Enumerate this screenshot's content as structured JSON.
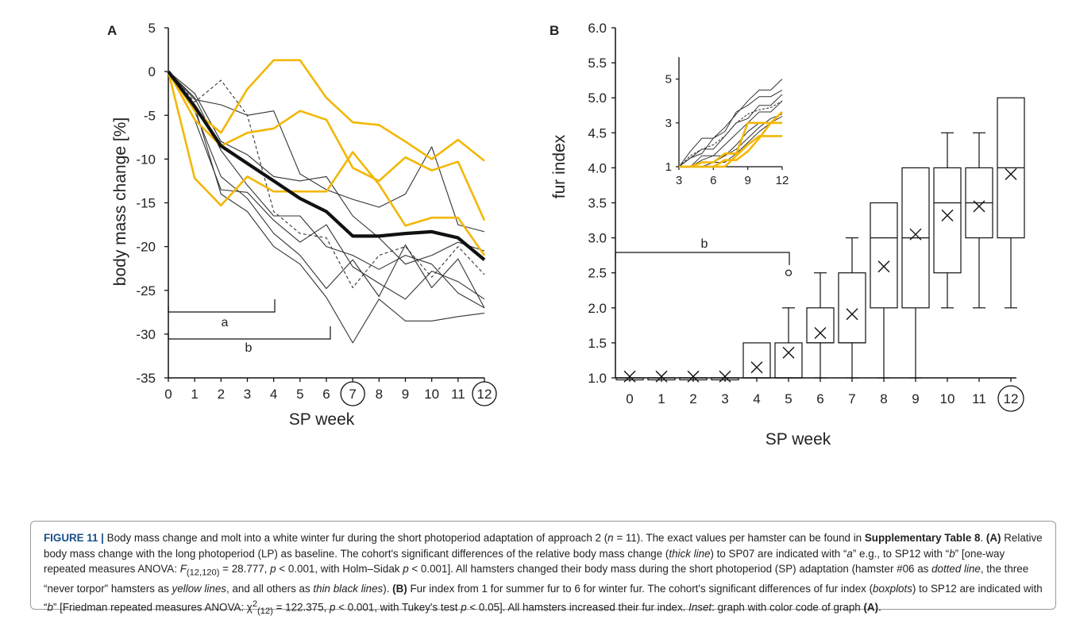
{
  "panel_a": {
    "label": "A",
    "ylabel": "body mass change [%]",
    "xlabel": "SP week",
    "y_ticks": [
      "5",
      "0",
      "-5",
      "-10",
      "-15",
      "-20",
      "-25",
      "-30",
      "-35"
    ],
    "x_ticks": [
      "0",
      "1",
      "2",
      "3",
      "4",
      "5",
      "6",
      "7",
      "8",
      "9",
      "10",
      "11",
      "12"
    ],
    "circled_ticks": [
      "7",
      "12"
    ],
    "bracket_a": "a",
    "bracket_b": "b"
  },
  "panel_b": {
    "label": "B",
    "ylabel": "fur index",
    "xlabel": "SP week",
    "y_ticks": [
      "6.0",
      "5.5",
      "5.0",
      "4.5",
      "4.0",
      "3.5",
      "3.0",
      "2.5",
      "2.0",
      "1.5",
      "1.0"
    ],
    "x_ticks": [
      "0",
      "1",
      "2",
      "3",
      "4",
      "5",
      "6",
      "7",
      "8",
      "9",
      "10",
      "11",
      "12"
    ],
    "circled_ticks": [
      "12"
    ],
    "bracket_b": "b",
    "inset_y_ticks": [
      "5",
      "3",
      "1"
    ],
    "inset_x_ticks": [
      "3",
      "6",
      "9",
      "12"
    ]
  },
  "colors": {
    "yellow": "#f2b705",
    "black": "#111111",
    "thin": "#333333",
    "caption_label": "#1a4f8a"
  },
  "chart_data": [
    {
      "type": "line",
      "panel": "A",
      "xlabel": "SP week",
      "ylabel": "body mass change [%]",
      "xlim": [
        0,
        12
      ],
      "ylim": [
        -35,
        5
      ],
      "x": [
        0,
        1,
        2,
        3,
        4,
        5,
        6,
        7,
        8,
        9,
        10,
        11,
        12
      ],
      "series": [
        {
          "style": "thick-black",
          "values": [
            0,
            -4,
            -8.5,
            -10.5,
            -12.5,
            -14.5,
            -16,
            -18.8,
            -18.8,
            -18.5,
            -18.3,
            -19,
            -21.5
          ]
        },
        {
          "style": "yellow",
          "values": [
            0,
            -4.5,
            -7,
            -2,
            1.3,
            1.3,
            -3,
            -5.8,
            -6.1,
            -8,
            -10,
            -7.8,
            -10.2
          ]
        },
        {
          "style": "yellow",
          "values": [
            0,
            -5.5,
            -8.5,
            -7,
            -6.5,
            -4.5,
            -5.5,
            -11,
            -12.5,
            -9.8,
            -11.3,
            -10.3,
            -17
          ]
        },
        {
          "style": "yellow",
          "values": [
            0,
            -12.2,
            -15.3,
            -12,
            -13.7,
            -13.7,
            -13.7,
            -9.2,
            -12.9,
            -17.6,
            -16.7,
            -16.7,
            -21
          ]
        },
        {
          "style": "dotted",
          "values": [
            0,
            -3.5,
            -1,
            -5,
            -16,
            -18.5,
            -19,
            -24.7,
            -21,
            -20,
            -23.5,
            -20,
            -23.2
          ]
        },
        {
          "style": "thin",
          "values": [
            0,
            -3.2,
            -3.8,
            -5,
            -4.5,
            -11.7,
            -13.5,
            -14.6,
            -15.5,
            -14,
            -8.6,
            -17.5,
            -18.3
          ]
        },
        {
          "style": "thin",
          "values": [
            0,
            -2.5,
            -8,
            -9.5,
            -12,
            -12.5,
            -12,
            -16.5,
            -19,
            -22,
            -21,
            -19.5,
            -20.5
          ]
        },
        {
          "style": "thin",
          "values": [
            0,
            -3,
            -9,
            -13,
            -16.5,
            -16.5,
            -20,
            -21,
            -22.6,
            -21,
            -22,
            -25.3,
            -27
          ]
        },
        {
          "style": "thin",
          "values": [
            0,
            -4.5,
            -12,
            -14.5,
            -18.5,
            -21,
            -24.8,
            -21.5,
            -25.7,
            -19.8,
            -24.7,
            -21.4,
            -27
          ]
        },
        {
          "style": "thin",
          "values": [
            0,
            -5.5,
            -13.5,
            -13.8,
            -17,
            -19.5,
            -17.5,
            -22.3,
            -24.2,
            -26,
            -22.8,
            -24,
            -26
          ]
        },
        {
          "style": "thin",
          "values": [
            0,
            -4,
            -14,
            -16,
            -20,
            -22,
            -25.8,
            -31,
            -26,
            -28.5,
            -28.5,
            -28,
            -27.6
          ]
        }
      ]
    },
    {
      "type": "box",
      "panel": "B",
      "xlabel": "SP week",
      "ylabel": "fur index",
      "ylim": [
        1.0,
        6.0
      ],
      "categories": [
        "0",
        "1",
        "2",
        "3",
        "4",
        "5",
        "6",
        "7",
        "8",
        "9",
        "10",
        "11",
        "12"
      ],
      "boxes": [
        {
          "min": 1.0,
          "q1": 1.0,
          "median": 1.0,
          "q3": 1.0,
          "max": 1.0,
          "mean": 1.02
        },
        {
          "min": 1.0,
          "q1": 1.0,
          "median": 1.0,
          "q3": 1.0,
          "max": 1.0,
          "mean": 1.02
        },
        {
          "min": 1.0,
          "q1": 1.0,
          "median": 1.0,
          "q3": 1.0,
          "max": 1.0,
          "mean": 1.02
        },
        {
          "min": 1.0,
          "q1": 1.0,
          "median": 1.0,
          "q3": 1.0,
          "max": 1.0,
          "mean": 1.02
        },
        {
          "min": 1.0,
          "q1": 1.0,
          "median": 1.0,
          "q3": 1.5,
          "max": 1.5,
          "mean": 1.15
        },
        {
          "min": 1.0,
          "q1": 1.0,
          "median": 1.0,
          "q3": 1.5,
          "max": 2.0,
          "mean": 1.36,
          "outlier": 2.5
        },
        {
          "min": 1.0,
          "q1": 1.5,
          "median": 1.5,
          "q3": 2.0,
          "max": 2.5,
          "mean": 1.64
        },
        {
          "min": 1.0,
          "q1": 1.5,
          "median": 1.5,
          "q3": 2.5,
          "max": 3.0,
          "mean": 1.91
        },
        {
          "min": 1.0,
          "q1": 2.0,
          "median": 3.0,
          "q3": 3.5,
          "max": 3.5,
          "mean": 2.59
        },
        {
          "min": 1.0,
          "q1": 2.0,
          "median": 3.0,
          "q3": 4.0,
          "max": 4.0,
          "mean": 3.05
        },
        {
          "min": 2.0,
          "q1": 2.5,
          "median": 3.5,
          "q3": 4.0,
          "max": 4.5,
          "mean": 3.32
        },
        {
          "min": 2.0,
          "q1": 3.0,
          "median": 3.5,
          "q3": 4.0,
          "max": 4.5,
          "mean": 3.45
        },
        {
          "min": 2.0,
          "q1": 3.0,
          "median": 4.0,
          "q3": 5.0,
          "max": 5.0,
          "mean": 3.91
        }
      ]
    },
    {
      "type": "line",
      "panel": "B-inset",
      "xlim": [
        3,
        12
      ],
      "ylim": [
        1,
        6
      ],
      "x": [
        3,
        4,
        5,
        6,
        7,
        8,
        9,
        10,
        11,
        12
      ],
      "series": [
        {
          "style": "yellow",
          "values": [
            1,
            1,
            1.2,
            1.2,
            1.6,
            1.6,
            3,
            3,
            3,
            3
          ]
        },
        {
          "style": "yellow",
          "values": [
            1,
            1,
            1,
            1,
            1,
            1.5,
            2.0,
            2.4,
            2.4,
            2.4
          ]
        },
        {
          "style": "yellow",
          "values": [
            1,
            1,
            1,
            1,
            1.3,
            1.3,
            1.7,
            2.3,
            3,
            3.5
          ]
        },
        {
          "style": "dotted",
          "values": [
            1,
            1.5,
            1.8,
            2,
            2.4,
            3,
            3.4,
            3.6,
            3.7,
            4
          ]
        },
        {
          "style": "thin",
          "values": [
            1,
            1.7,
            2.3,
            2.3,
            2.8,
            3.4,
            4.0,
            4.5,
            4.5,
            5
          ]
        },
        {
          "style": "thin",
          "values": [
            1,
            1.4,
            1.6,
            2.3,
            2.6,
            3.5,
            3.8,
            4.2,
            4.2,
            4.5
          ]
        },
        {
          "style": "thin",
          "values": [
            1,
            1.4,
            1.8,
            1.8,
            2.4,
            3,
            3.2,
            3.8,
            3.8,
            4.3
          ]
        },
        {
          "style": "thin",
          "values": [
            1,
            1,
            1.5,
            1.5,
            2,
            2.5,
            3,
            3.5,
            3.5,
            4
          ]
        },
        {
          "style": "thin",
          "values": [
            1,
            1,
            1.3,
            1.5,
            1.5,
            2,
            2.6,
            3,
            3,
            3
          ]
        },
        {
          "style": "thin",
          "values": [
            1,
            1,
            1.2,
            1.2,
            1.5,
            1.8,
            2.3,
            2.8,
            3.2,
            3.4
          ]
        },
        {
          "style": "thin",
          "values": [
            1,
            1,
            1,
            1.2,
            1.2,
            1.6,
            2.1,
            2.6,
            3,
            3.3
          ]
        }
      ]
    }
  ],
  "caption": {
    "fig_label": "FIGURE 11 |",
    "s1": " Body mass change and molt into a white winter fur during the short photoperiod adaptation of approach 2 (",
    "n_var": "n",
    "s2": " = 11). The exact values per hamster can be found in ",
    "supp": "Supplementary Table 8",
    "s3": ". ",
    "a_label": "(A)",
    "s4": " Relative body mass change with the long photoperiod (LP) as baseline. The cohort's significant differences of the relative body mass change (",
    "thick_line": "thick line",
    "s5": ") to SP07 are indicated with “",
    "a_sym": "a",
    "s6": "” e.g., to SP12 with “",
    "b_sym": "b",
    "s7": "” [one-way repeated measures ANOVA: ",
    "f_var": "F",
    "f_sub": "(12,120)",
    "s8": " = 28.777, ",
    "p1": "p",
    "s9": " < 0.001, with Holm–Sidak ",
    "p2": "p",
    "s10": " < 0.001]. All hamsters changed their body mass during the short photoperiod (SP) adaptation (hamster #06 as ",
    "dotted_line": "dotted line",
    "s11": ", the three “never torpor” hamsters as ",
    "yellow_lines": "yellow lines",
    "s12": ", and all others as ",
    "thin_black": "thin black lines",
    "s13": "). ",
    "b_label": "(B)",
    "s14": " Fur index from 1 for summer fur to 6 for winter fur. The cohort's significant differences of fur index (",
    "boxplots": "boxplots",
    "s15": ") to SP12 are indicated with “",
    "b_sym2": "b",
    "s16": "” [Friedman repeated measures ANOVA: χ",
    "chi_sup": "2",
    "chi_sub": "(12)",
    "s17": " = 122.375, ",
    "p3": "p",
    "s18": " < 0.001, with Tukey's test ",
    "p4": "p",
    "s19": " < 0.05]. All hamsters increased their fur index. ",
    "inset": "Inset",
    "s20": ": graph with color code of graph ",
    "a_label2": "(A)",
    "s21": "."
  }
}
